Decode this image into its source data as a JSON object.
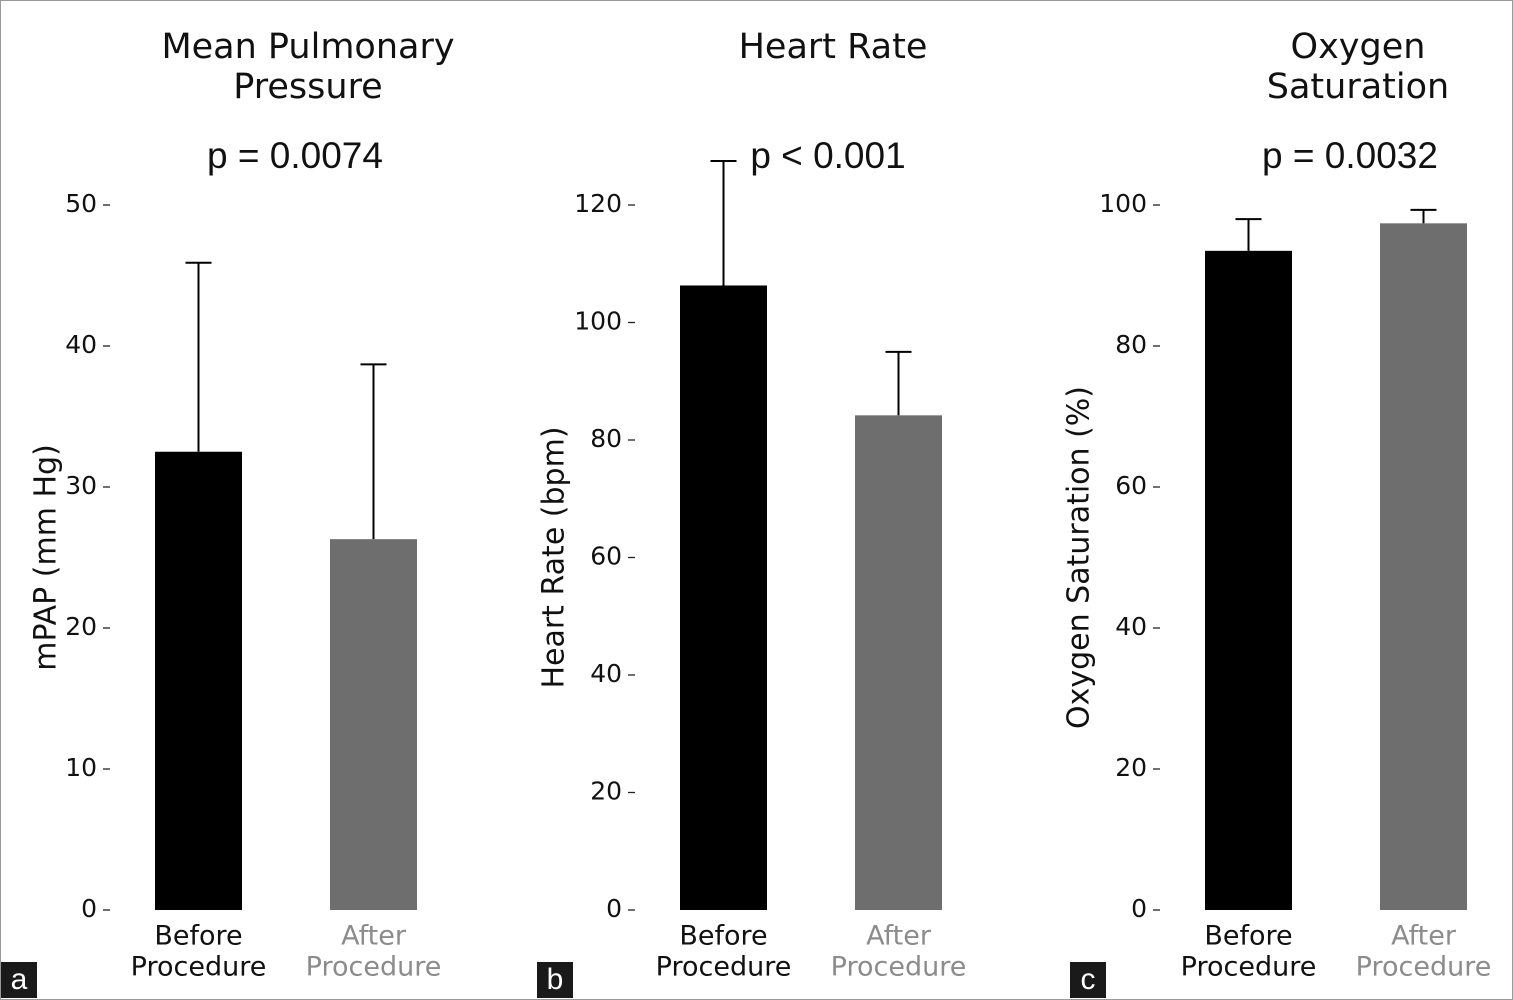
{
  "colors": {
    "before": "#000000",
    "after": "#6e6e6e",
    "after_label": "#8c8c8c",
    "panel_tag_bg": "#1a1a1a"
  },
  "chart_data": [
    {
      "type": "bar",
      "panel_label": "a",
      "title": [
        "Mean Pulmonary",
        "Pressure"
      ],
      "annotation": "p = 0.0074",
      "ylabel": "mPAP (mm Hg)",
      "ylim": [
        0,
        50
      ],
      "yticks": [
        0,
        10,
        20,
        30,
        40,
        50
      ],
      "categories": [
        [
          "Before",
          "Procedure"
        ],
        [
          "After",
          "Procedure"
        ]
      ],
      "values": [
        32.5,
        26.3
      ],
      "error_upper": [
        45.9,
        38.7
      ]
    },
    {
      "type": "bar",
      "panel_label": "b",
      "title": [
        "Heart Rate"
      ],
      "annotation": "p < 0.001",
      "ylabel": "Heart Rate (bpm)",
      "ylim": [
        0,
        120
      ],
      "yticks": [
        0,
        20,
        40,
        60,
        80,
        100,
        120
      ],
      "categories": [
        [
          "Before",
          "Procedure"
        ],
        [
          "After",
          "Procedure"
        ]
      ],
      "values": [
        106.3,
        84.2
      ],
      "error_upper": [
        127.5,
        95.0
      ]
    },
    {
      "type": "bar",
      "panel_label": "c",
      "title": [
        "Oxygen",
        "Saturation"
      ],
      "annotation": "p = 0.0032",
      "ylabel": "Oxygen Saturation (%)",
      "ylim": [
        0,
        100
      ],
      "yticks": [
        0,
        20,
        40,
        60,
        80,
        100
      ],
      "categories": [
        [
          "Before",
          "Procedure"
        ],
        [
          "After",
          "Procedure"
        ]
      ],
      "values": [
        93.5,
        97.4
      ],
      "error_upper": [
        98.0,
        99.3
      ]
    }
  ]
}
